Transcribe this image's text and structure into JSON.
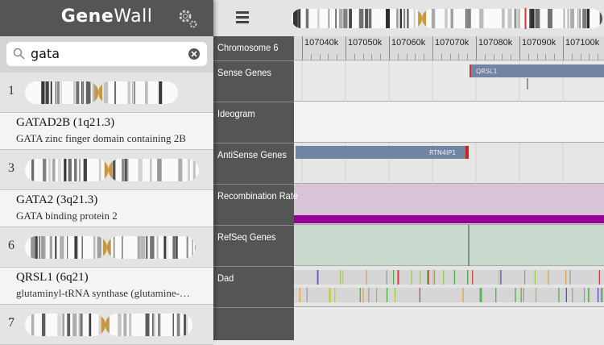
{
  "app": {
    "title_bold": "Gene",
    "title_light": "Wall"
  },
  "search": {
    "query": "gata"
  },
  "items": [
    {
      "chromosome": "1"
    },
    {
      "title": "GATAD2B (1q21.3)",
      "subtitle": "GATA zinc finger domain containing 2B"
    },
    {
      "chromosome": "3"
    },
    {
      "title": "GATA2 (3q21.3)",
      "subtitle": "GATA binding protein 2"
    },
    {
      "chromosome": "6"
    },
    {
      "title": "QRSL1 (6q21)",
      "subtitle": "glutaminyl-tRNA synthase (glutamine-…"
    },
    {
      "chromosome": "7"
    }
  ],
  "browser": {
    "chromosome_label": "Chromosome 6",
    "ruler_ticks": [
      "107040k",
      "107050k",
      "107060k",
      "107070k",
      "107080k",
      "107090k",
      "107100k"
    ],
    "tracks": [
      {
        "name": "Sense Genes",
        "feature": "QRSL1"
      },
      {
        "name": "Ideogram"
      },
      {
        "name": "AntiSense Genes",
        "feature": "RTN4IP1"
      },
      {
        "name": "Recombination Rate"
      },
      {
        "name": "RefSeq Genes"
      },
      {
        "name": "Dad"
      }
    ]
  }
}
